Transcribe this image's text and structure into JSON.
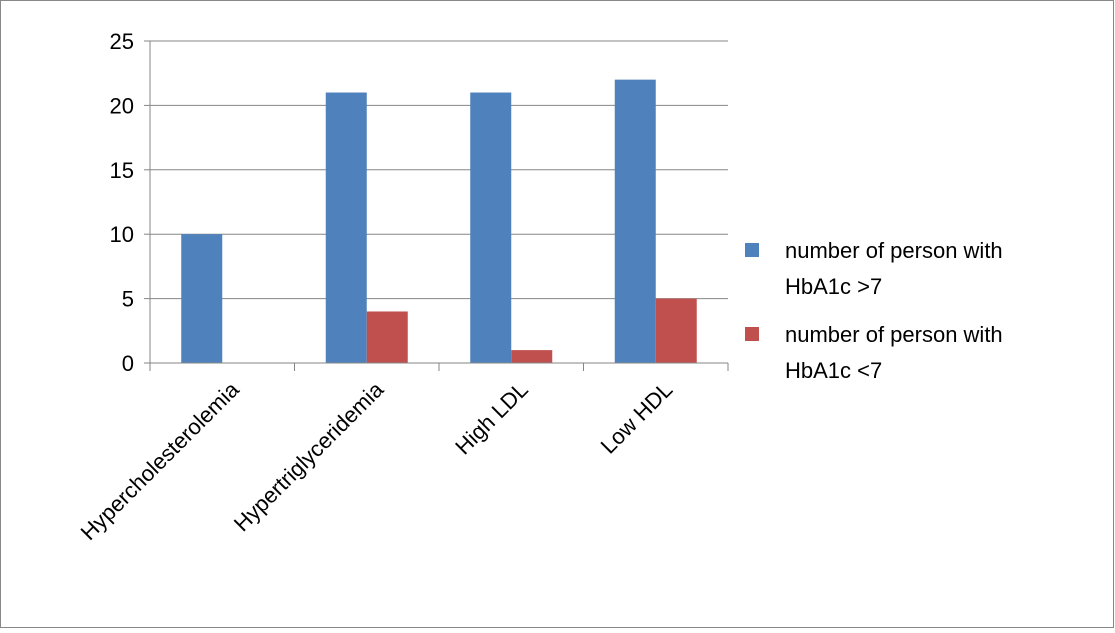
{
  "chart_data": {
    "type": "bar",
    "title": "",
    "xlabel": "",
    "ylabel": "",
    "categories": [
      "Hypercholesterolemia",
      "Hypertriglyceridemia",
      "High LDL",
      "Low HDL"
    ],
    "series": [
      {
        "name_lines": [
          "number of person with",
          "HbA1c >7"
        ],
        "color": "#4f81bd",
        "values": [
          10,
          21,
          21,
          22
        ]
      },
      {
        "name_lines": [
          "number of person with",
          "HbA1c <7"
        ],
        "color": "#c0504d",
        "values": [
          0,
          4,
          1,
          5
        ]
      }
    ],
    "ylim": [
      0,
      25
    ],
    "yticks": [
      0,
      5,
      10,
      15,
      20,
      25
    ],
    "grid": true,
    "legend": "right"
  }
}
